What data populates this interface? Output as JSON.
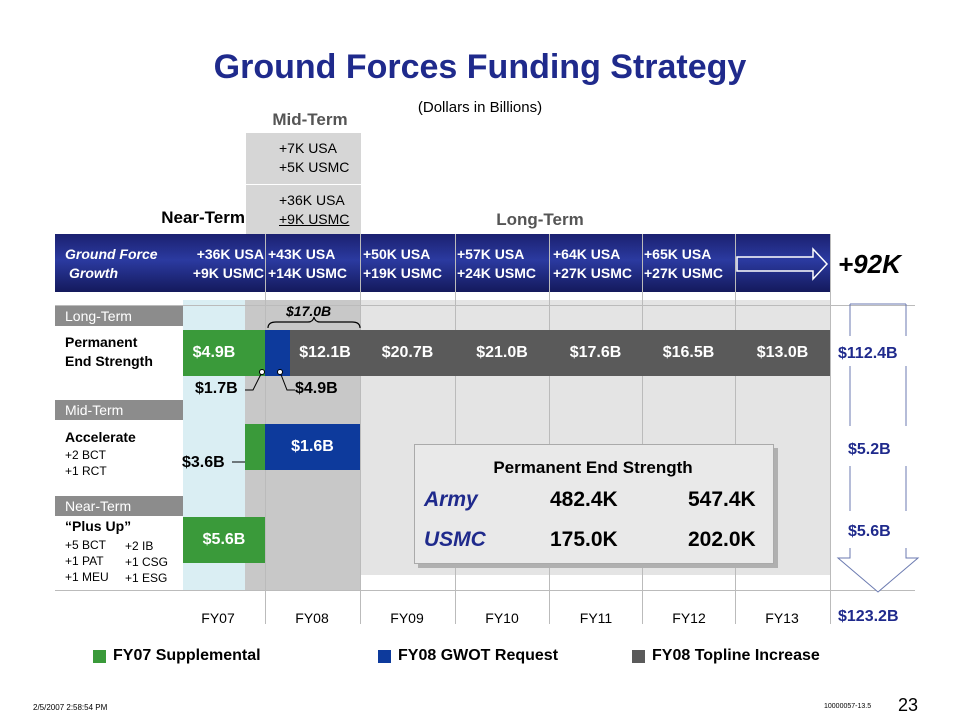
{
  "title": "Ground Forces Funding Strategy",
  "subtitle": "(Dollars in Billions)",
  "labels": {
    "mid_term": "Mid-Term",
    "near_term": "Near-Term",
    "long_term": "Long-Term"
  },
  "mid_term_box": {
    "line1": "+7K USA",
    "line2": "+5K USMC",
    "line3": "+36K USA",
    "line4": "+9K USMC"
  },
  "growth": {
    "label1": "Ground Force",
    "label2": "Growth",
    "total": "+92K",
    "years": [
      {
        "usa": "+36K USA",
        "usmc": "+9K USMC"
      },
      {
        "usa": "+43K USA",
        "usmc": "+14K USMC"
      },
      {
        "usa": "+50K USA",
        "usmc": "+19K USMC"
      },
      {
        "usa": "+57K USA",
        "usmc": "+24K USMC"
      },
      {
        "usa": "+64K USA",
        "usmc": "+27K USMC"
      },
      {
        "usa": "+65K USA",
        "usmc": "+27K USMC"
      }
    ]
  },
  "sections": {
    "long": "Long-Term",
    "mid": "Mid-Term",
    "near": "Near-Term"
  },
  "rows": {
    "permanent": {
      "line1": "Permanent",
      "line2": "End Strength"
    },
    "accelerate": {
      "title": "Accelerate",
      "sub1": "+2 BCT",
      "sub2": "+1 RCT"
    },
    "plusup": {
      "title": "“Plus Up”",
      "a1": "+5 BCT",
      "a2": "+1 PAT",
      "a3": "+1 MEU",
      "b1": "+2 IB",
      "b2": "+1 CSG",
      "b3": "+1 ESG"
    }
  },
  "values": {
    "bracket": "$17.0B",
    "fy07_perm": "$4.9B",
    "fy08_perm": "$12.1B",
    "fy09": "$20.7B",
    "fy10": "$21.0B",
    "fy11": "$17.6B",
    "fy12": "$16.5B",
    "fy13": "$13.0B",
    "call_17": "$1.7B",
    "call_49": "$4.9B",
    "call_36": "$3.6B",
    "fy08_acc": "$1.6B",
    "fy07_plus": "$5.6B"
  },
  "totals": {
    "perm": "$112.4B",
    "acc": "$5.2B",
    "plus": "$5.6B",
    "grand": "$123.2B"
  },
  "years": [
    "FY07",
    "FY08",
    "FY09",
    "FY10",
    "FY11",
    "FY12",
    "FY13"
  ],
  "pes": {
    "title": "Permanent End Strength",
    "army": "Army",
    "army_from": "482.4K",
    "army_to": "547.4K",
    "usmc": "USMC",
    "usmc_from": "175.0K",
    "usmc_to": "202.0K"
  },
  "legend": {
    "green": "FY07 Supplemental",
    "blue": "FY08 GWOT Request",
    "gray": "FY08 Topline Increase"
  },
  "colors": {
    "green": "#3a9a3a",
    "blue": "#0d3a9c",
    "gray": "#5a5a5a",
    "title": "#1f2a8c"
  },
  "footer": {
    "date": "2/5/2007 2:58:54 PM",
    "code": "10000057-13.5",
    "page": "23"
  }
}
